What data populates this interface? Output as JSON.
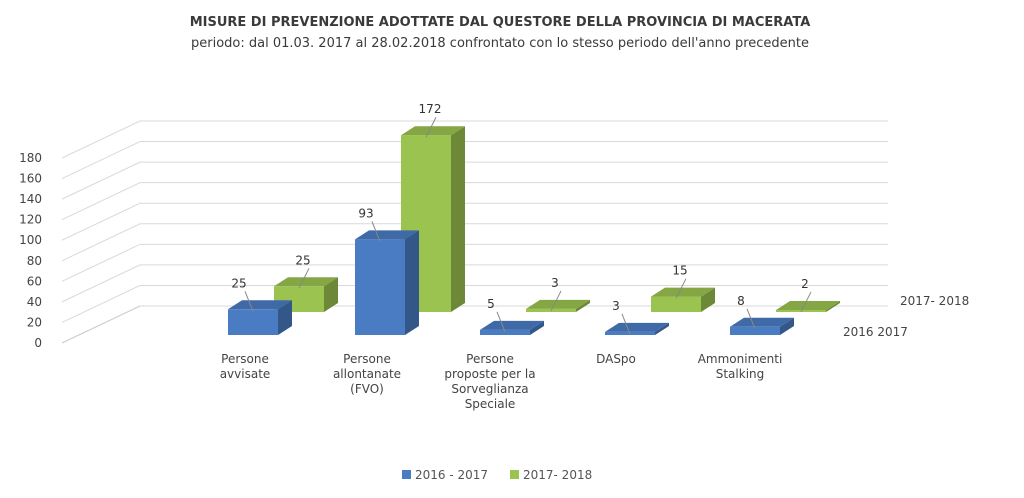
{
  "chart_data": {
    "type": "bar",
    "title": "MISURE DI PREVENZIONE ADOTTATE DAL QUESTORE DELLA PROVINCIA DI MACERATA",
    "subtitle": "periodo: dal 01.03. 2017 al 28.02.2018 confrontato con lo stesso periodo dell'anno precedente",
    "categories": [
      [
        "Persone",
        "avvisate"
      ],
      [
        "Persone",
        "allontanate",
        "(FVO)"
      ],
      [
        "Persone",
        "proposte per la",
        "Sorveglianza",
        "Speciale"
      ],
      [
        "DASpo"
      ],
      [
        "Ammonimenti",
        "Stalking"
      ]
    ],
    "series": [
      {
        "name": "2016 - 2017",
        "values": [
          25,
          93,
          5,
          3,
          8
        ],
        "color": "#4a7cc4"
      },
      {
        "name": "2017- 2018",
        "values": [
          25,
          172,
          3,
          15,
          2
        ],
        "color": "#9bc350"
      }
    ],
    "depth_axis_labels": [
      "2016  2017",
      "2017- 2018"
    ],
    "ylim": [
      0,
      180
    ],
    "yticks": [
      0,
      20,
      40,
      60,
      80,
      100,
      120,
      140,
      160,
      180
    ],
    "grid": true,
    "legend_position": "bottom"
  }
}
